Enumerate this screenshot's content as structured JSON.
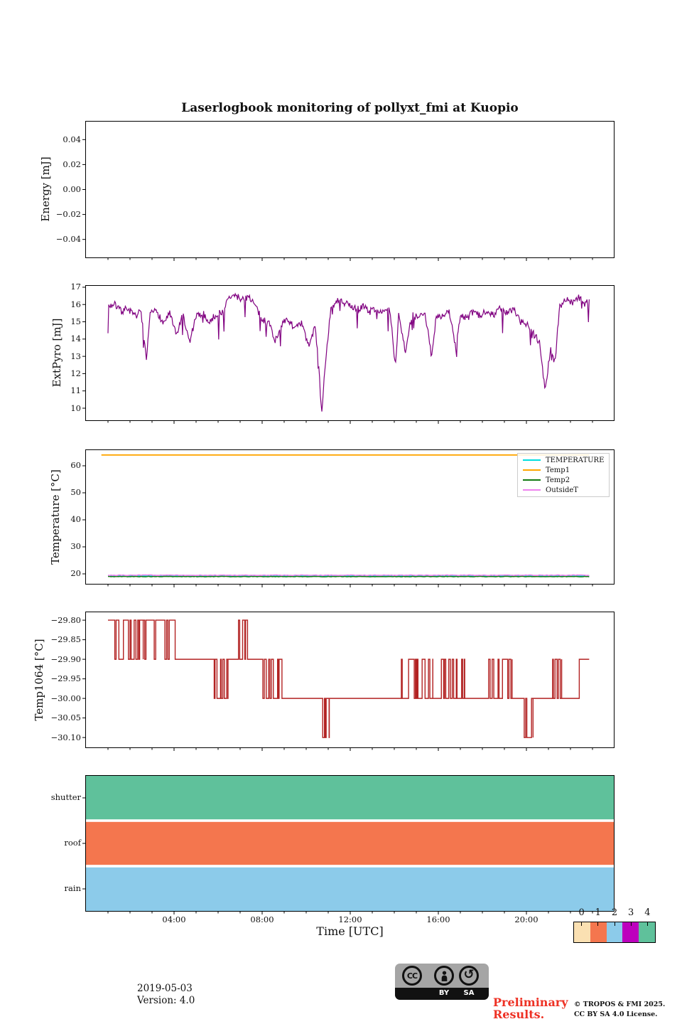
{
  "title": "Laserlogbook monitoring of pollyxt_fmi at Kuopio",
  "xlabel": "Time [UTC]",
  "xticks": {
    "hours": [
      4,
      8,
      12,
      16,
      20
    ],
    "labels": [
      "04:00",
      "08:00",
      "12:00",
      "16:00",
      "20:00"
    ]
  },
  "chart_data": [
    {
      "type": "line",
      "ylabel": "Energy [mJ]",
      "xlim": [
        0,
        24
      ],
      "ylim": [
        -0.055,
        0.055
      ],
      "ytick_values": [
        0.04,
        0.02,
        0,
        -0.02,
        -0.04
      ],
      "ytick_labels": [
        "0.04",
        "0.02",
        "0.00",
        "−0.02",
        "−0.04"
      ],
      "series": []
    },
    {
      "type": "line",
      "ylabel": "ExtPyro [mJ]",
      "xlim": [
        0,
        24
      ],
      "ylim": [
        9.26,
        17.12
      ],
      "ytick_values": [
        17,
        16,
        15,
        14,
        13,
        12,
        11,
        10
      ],
      "ytick_labels": [
        "17",
        "16",
        "15",
        "14",
        "13",
        "12",
        "11",
        "10"
      ],
      "series": [
        {
          "name": "ExtPyro",
          "color": "#800080",
          "linewidth": 1.2,
          "samples": 640,
          "noise": 0.2,
          "downspike_prob": 0.07,
          "downspike_depth": 1.4,
          "seed": 7,
          "keypoints": [
            [
              1,
              15.9
            ],
            [
              1.3,
              16
            ],
            [
              1.6,
              15.6
            ],
            [
              1.9,
              15.8
            ],
            [
              2.2,
              15.3
            ],
            [
              2.5,
              15.6
            ],
            [
              2.75,
              12.6
            ],
            [
              2.9,
              15.4
            ],
            [
              3.2,
              15.7
            ],
            [
              3.5,
              14.9
            ],
            [
              3.8,
              15.5
            ],
            [
              4.1,
              14.2
            ],
            [
              4.4,
              15.4
            ],
            [
              4.7,
              13.8
            ],
            [
              5,
              15.3
            ],
            [
              5.3,
              15.5
            ],
            [
              5.6,
              15
            ],
            [
              5.9,
              15.4
            ],
            [
              6.2,
              15.6
            ],
            [
              6.5,
              16.4
            ],
            [
              6.8,
              16.5
            ],
            [
              7.1,
              16.3
            ],
            [
              7.4,
              16.5
            ],
            [
              7.7,
              15.9
            ],
            [
              8,
              15.1
            ],
            [
              8.3,
              15
            ],
            [
              8.6,
              13.9
            ],
            [
              8.9,
              14.9
            ],
            [
              9.2,
              15.1
            ],
            [
              9.5,
              14.6
            ],
            [
              9.8,
              14.9
            ],
            [
              10.1,
              13.6
            ],
            [
              10.4,
              14.7
            ],
            [
              10.55,
              12.9
            ],
            [
              10.7,
              9.7
            ],
            [
              10.9,
              13
            ],
            [
              11.1,
              15.6
            ],
            [
              11.4,
              16.2
            ],
            [
              11.7,
              16.1
            ],
            [
              12,
              15.9
            ],
            [
              12.3,
              15.7
            ],
            [
              12.6,
              15.9
            ],
            [
              12.9,
              15.6
            ],
            [
              13.2,
              15.8
            ],
            [
              13.5,
              15.5
            ],
            [
              13.8,
              15.7
            ],
            [
              14.05,
              12.4
            ],
            [
              14.2,
              15.5
            ],
            [
              14.5,
              13.3
            ],
            [
              14.8,
              15.4
            ],
            [
              15.1,
              15.2
            ],
            [
              15.4,
              15.5
            ],
            [
              15.7,
              12.9
            ],
            [
              15.9,
              15.4
            ],
            [
              16.2,
              15.3
            ],
            [
              16.5,
              15.6
            ],
            [
              16.8,
              13.4
            ],
            [
              17,
              15.4
            ],
            [
              17.3,
              15.2
            ],
            [
              17.6,
              15.6
            ],
            [
              17.9,
              15.3
            ],
            [
              18.2,
              15.7
            ],
            [
              18.5,
              15.4
            ],
            [
              18.8,
              15.8
            ],
            [
              19.1,
              15.5
            ],
            [
              19.4,
              15.7
            ],
            [
              19.7,
              15.2
            ],
            [
              20,
              14.9
            ],
            [
              20.3,
              14.4
            ],
            [
              20.6,
              13.8
            ],
            [
              20.85,
              11
            ],
            [
              21.1,
              13.5
            ],
            [
              21.3,
              12.6
            ],
            [
              21.5,
              15.9
            ],
            [
              21.8,
              16.3
            ],
            [
              22.1,
              16.1
            ],
            [
              22.4,
              16.4
            ],
            [
              22.6,
              16
            ],
            [
              22.85,
              16.2
            ]
          ]
        }
      ]
    },
    {
      "type": "line",
      "ylabel": "Temperature [°C]",
      "xlim": [
        0,
        24
      ],
      "ylim": [
        16.05,
        66.05
      ],
      "ytick_values": [
        60,
        50,
        40,
        30,
        20
      ],
      "ytick_labels": [
        "60",
        "50",
        "40",
        "30",
        "20"
      ],
      "legend": {
        "position": "upper right",
        "entries": [
          "TEMPERATURE",
          "Temp1",
          "Temp2",
          "OutsideT"
        ]
      },
      "series": [
        {
          "name": "TEMPERATURE",
          "color": "#00dede",
          "linewidth": 1.5,
          "samples": 2,
          "noise": 0,
          "seed": 3,
          "keypoints": [
            [
              1,
              19.25
            ],
            [
              22.85,
              19.25
            ]
          ]
        },
        {
          "name": "Temp1",
          "color": "#ffa500",
          "linewidth": 1.8,
          "samples": 2,
          "noise": 0,
          "seed": 4,
          "keypoints": [
            [
              0.7,
              64
            ],
            [
              22.85,
              64
            ]
          ]
        },
        {
          "name": "Temp2",
          "color": "#127a12",
          "linewidth": 1.5,
          "samples": 320,
          "noise": 0.1,
          "seed": 5,
          "keypoints": [
            [
              1,
              19
            ],
            [
              22.85,
              19
            ]
          ]
        },
        {
          "name": "OutsideT",
          "color": "#ee82ee",
          "linewidth": 1.6,
          "samples": 320,
          "noise": 0.12,
          "seed": 6,
          "keypoints": [
            [
              1,
              19.5
            ],
            [
              22.85,
              19.5
            ]
          ]
        }
      ]
    },
    {
      "type": "steps",
      "ylabel": "Temp1064 [°C]",
      "xlim": [
        0,
        24
      ],
      "ylim": [
        -30.127,
        -29.778
      ],
      "ytick_values": [
        -29.8,
        -29.85,
        -29.9,
        -29.95,
        -30,
        -30.05,
        -30.1
      ],
      "ytick_labels": [
        "−29.80",
        "−29.85",
        "−29.90",
        "−29.95",
        "−30.00",
        "−30.05",
        "−30.10"
      ],
      "series": [
        {
          "name": "Temp1064",
          "color": "#b22222",
          "linewidth": 1.4,
          "seed": 11,
          "segments": [
            [
              1,
              1.7,
              -29.8,
              -29.9,
              0.5
            ],
            [
              1.7,
              2.6,
              -29.8,
              -29.9,
              0.45
            ],
            [
              2.6,
              3.3,
              -29.8,
              -29.9,
              0.3
            ],
            [
              3.3,
              4.05,
              -29.8,
              -29.9,
              0.12
            ],
            [
              4.05,
              5.75,
              -29.9,
              null,
              0
            ],
            [
              5.75,
              6.45,
              -29.9,
              -30,
              0.4
            ],
            [
              6.45,
              6.85,
              -29.9,
              null,
              0
            ],
            [
              6.85,
              7.45,
              -29.9,
              -29.8,
              0.5
            ],
            [
              7.45,
              8,
              -29.9,
              null,
              0
            ],
            [
              8,
              8.9,
              -29.9,
              -30,
              0.35
            ],
            [
              8.9,
              10.75,
              -30,
              null,
              0
            ],
            [
              10.75,
              11.05,
              -30.1,
              -30,
              0.25
            ],
            [
              11.05,
              14.15,
              -30,
              null,
              0
            ],
            [
              14.15,
              15,
              -30,
              -29.9,
              0.5
            ],
            [
              15,
              15.75,
              -30,
              -29.9,
              0.45
            ],
            [
              15.75,
              16.1,
              -30,
              null,
              0
            ],
            [
              16.1,
              16.85,
              -30,
              -29.9,
              0.5
            ],
            [
              16.85,
              17.2,
              -30,
              -29.9,
              0.25
            ],
            [
              17.2,
              18.1,
              -30,
              null,
              0
            ],
            [
              18.1,
              19.35,
              -30,
              -29.9,
              0.5
            ],
            [
              19.35,
              19.9,
              -30,
              null,
              0
            ],
            [
              19.9,
              20.3,
              -30.1,
              -30,
              0.25
            ],
            [
              20.3,
              21.15,
              -30,
              null,
              0
            ],
            [
              21.15,
              21.6,
              -30,
              -29.9,
              0.5
            ],
            [
              21.6,
              22.4,
              -30,
              null,
              0
            ],
            [
              22.4,
              22.85,
              -29.9,
              null,
              0
            ]
          ]
        }
      ]
    },
    {
      "type": "bands",
      "xlim": [
        0,
        24
      ],
      "rows": [
        {
          "label": "shutter",
          "color": "#5fc19b",
          "status_value": 4
        },
        {
          "label": "roof",
          "color": "#f4764e",
          "status_value": 1
        },
        {
          "label": "rain",
          "color": "#8ccbea",
          "status_value": 2
        }
      ]
    }
  ],
  "colorbar": {
    "tick_labels": [
      "0",
      "1",
      "2",
      "3",
      "4"
    ],
    "colors": [
      "#fae0b2",
      "#f4764e",
      "#8ccbea",
      "#bd00bd",
      "#5fc19b"
    ]
  },
  "footer": {
    "date": "2019-05-03",
    "version": "Version: 4.0",
    "preliminary": {
      "line1": "Preliminary",
      "line2": "Results.",
      "color": "#ee3124"
    },
    "copyright": {
      "line1": "© TROPOS & FMI 2025.",
      "line2": "CC BY SA 4.0 License."
    },
    "license_badge": {
      "cc": "CC",
      "by": "BY",
      "sa": "SA"
    }
  }
}
